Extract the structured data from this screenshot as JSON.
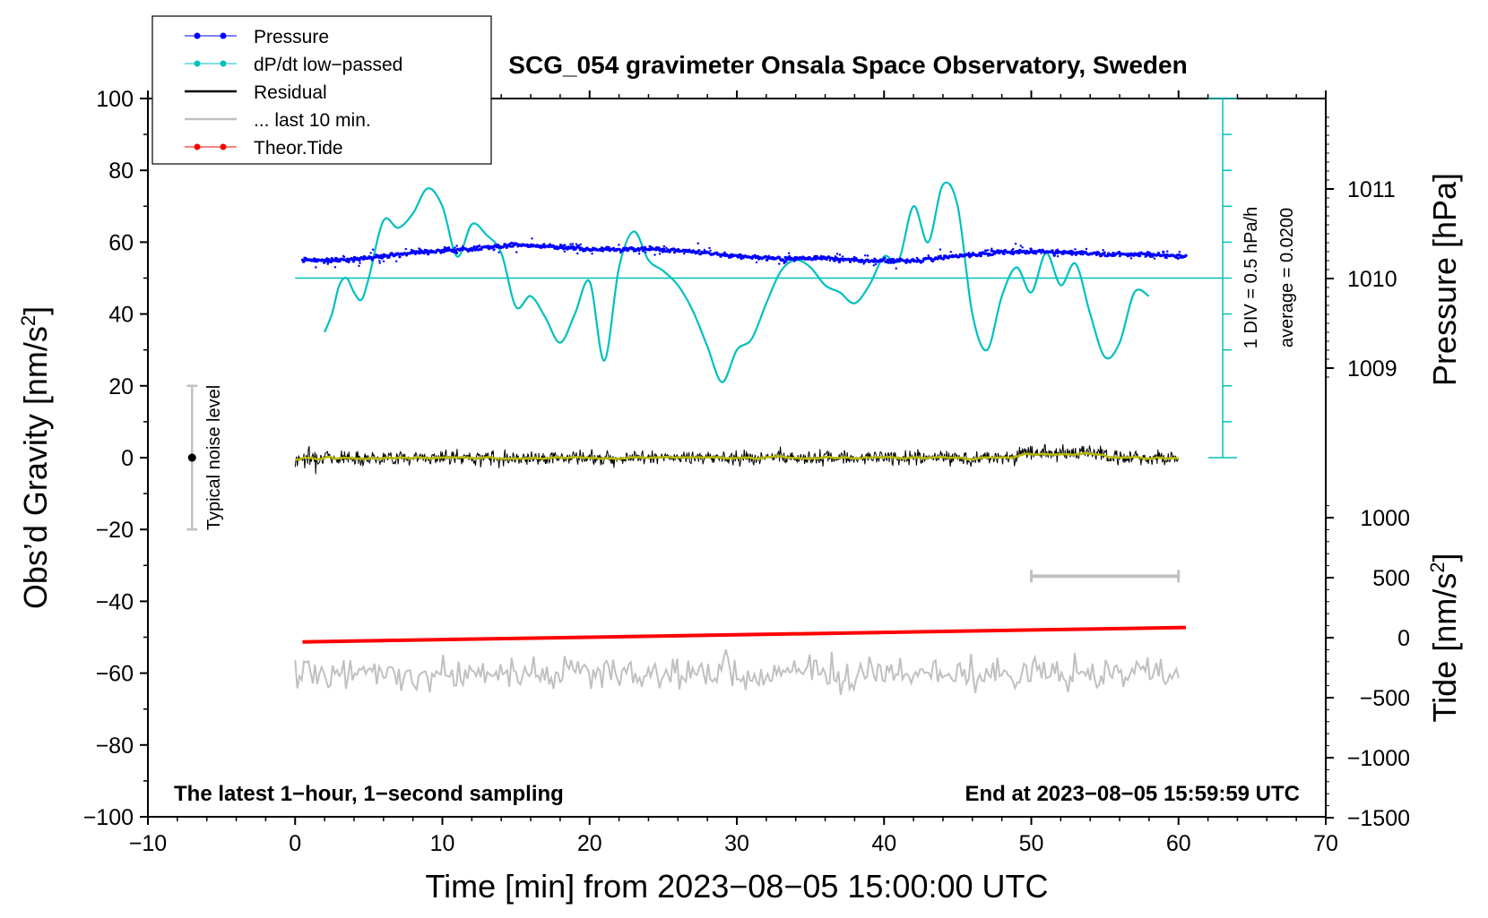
{
  "chart_data": {
    "type": "line",
    "title": "SCG_054 gravimeter Onsala Space Observatory, Sweden",
    "xlabel": "Time [min] from 2023−08−05 15:00:00 UTC",
    "ylabel": "Obs’d Gravity [nm/s²]",
    "ylabel_main": "Obs’d Gravity [nm/s",
    "ylabel_sup": "2",
    "ylabel_end": "]",
    "y2label": "Pressure [hPa]",
    "y3label_main": "Tide [nm/s",
    "y3label_sup": "2",
    "y3label_end": "]",
    "y3label": "Tide [nm/s²]",
    "xlim": [
      -10,
      70
    ],
    "ylim": [
      -100,
      100
    ],
    "x_ticks": [
      -10,
      0,
      10,
      20,
      30,
      40,
      50,
      60,
      70
    ],
    "x_tick_labels": [
      "−10",
      "0",
      "10",
      "20",
      "30",
      "40",
      "50",
      "60",
      "70"
    ],
    "y_ticks": [
      -100,
      -80,
      -60,
      -40,
      -20,
      0,
      20,
      40,
      60,
      80,
      100
    ],
    "y_tick_labels": [
      "−100",
      "−80",
      "−60",
      "−40",
      "−20",
      "0",
      "20",
      "40",
      "60",
      "80",
      "100"
    ],
    "pressure_ticks": [
      1009,
      1010,
      1011
    ],
    "pressure_tick_labels": [
      "1009",
      "1010",
      "1011"
    ],
    "tide_ticks": [
      -1500,
      -1000,
      -500,
      0,
      500,
      1000
    ],
    "tide_tick_labels": [
      "−1500",
      "−1000",
      "−500",
      "0",
      "500",
      "1000"
    ],
    "legend": [
      {
        "name": "Pressure",
        "color": "#0000ff",
        "style": "line-dot"
      },
      {
        "name": "dP/dt low−passed",
        "color": "#00c0c0",
        "style": "line-dot"
      },
      {
        "name": "Residual",
        "color": "#000000",
        "style": "line"
      },
      {
        "name": "... last 10 min.",
        "color": "#c0c0c0",
        "style": "line"
      },
      {
        "name": "Theor.Tide",
        "color": "#ff0000",
        "style": "line-dot"
      }
    ],
    "annotations": {
      "div_label": "1 DIV = 0.5 hPa/h",
      "average_label": "average = 0.0200",
      "noise_label": "Typical noise level",
      "bottom_left": "The latest 1−hour, 1−second sampling",
      "bottom_right": "End at 2023−08−05 15:59:59 UTC"
    },
    "noise_bar": {
      "x": -7,
      "y_low": -20,
      "y_high": 20
    },
    "last10_bar": {
      "x_start": 50,
      "x_end": 60,
      "y": -33
    },
    "dpdt_zero_line_y": 50,
    "dpdt_series": {
      "name": "dP/dt low−passed",
      "x": [
        2,
        2.5,
        3,
        3.5,
        4,
        4.5,
        5,
        6,
        7,
        8,
        9,
        10,
        11,
        12,
        13,
        14,
        15,
        16,
        17,
        18,
        19,
        20,
        21,
        22,
        23,
        24,
        25,
        26,
        27,
        28,
        29,
        30,
        31,
        32,
        33,
        34,
        35,
        36,
        37,
        38,
        39,
        40,
        41,
        42,
        43,
        44,
        45,
        46,
        47,
        48,
        49,
        50,
        51,
        52,
        53,
        54,
        55,
        56,
        57,
        58
      ],
      "values": [
        35,
        40,
        48,
        50,
        46,
        44,
        50,
        66,
        64,
        68,
        75,
        70,
        56,
        65,
        62,
        57,
        42,
        45,
        39,
        32,
        40,
        49,
        27,
        53,
        63,
        55,
        52,
        48,
        41,
        31,
        21,
        30,
        33,
        43,
        52,
        55,
        53,
        48,
        46,
        43,
        48,
        56,
        55,
        70,
        60,
        76,
        70,
        40,
        30,
        45,
        53,
        46,
        57,
        48,
        54,
        40,
        28,
        32,
        46,
        45
      ]
    },
    "pressure_series": {
      "name": "Pressure",
      "x": [
        0.5,
        3,
        6,
        9,
        12,
        15,
        18,
        21,
        24,
        27,
        30,
        33,
        36,
        39,
        42,
        45,
        48,
        51,
        54,
        57,
        60.5
      ],
      "values": [
        1010.2,
        1010.2,
        1010.25,
        1010.3,
        1010.33,
        1010.38,
        1010.35,
        1010.32,
        1010.33,
        1010.3,
        1010.25,
        1010.22,
        1010.23,
        1010.2,
        1010.2,
        1010.25,
        1010.3,
        1010.3,
        1010.28,
        1010.27,
        1010.25
      ]
    },
    "residual_series": {
      "name": "Residual",
      "x_range": [
        0,
        60
      ],
      "typical_range": [
        -10,
        10
      ]
    },
    "last10_series": {
      "name": "... last 10 min.",
      "x_range": [
        0,
        60
      ],
      "center": -60,
      "typical_range": [
        -67,
        -53
      ]
    },
    "tide_series": {
      "name": "Theor.Tide",
      "x": [
        0.5,
        60.5
      ],
      "values": [
        -35,
        85
      ]
    }
  }
}
